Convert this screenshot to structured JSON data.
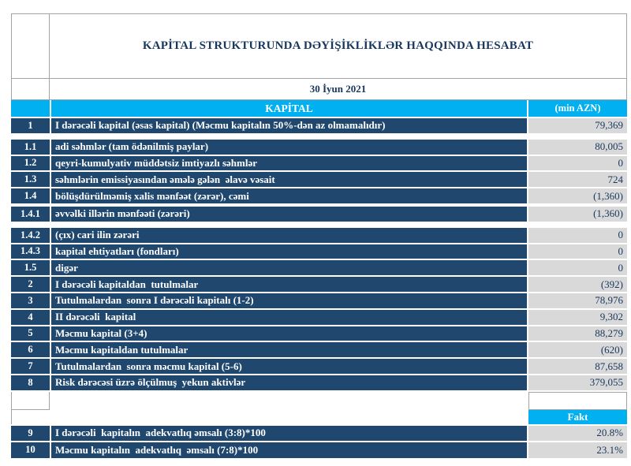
{
  "report": {
    "title": "KAPİTAL STRUKTURUNDA DƏYİŞİKLİKLƏR HAQQINDA HESABAT",
    "date": "30 İyun 2021"
  },
  "table": {
    "header": {
      "title": "KAPİTAL",
      "unit": "(min AZN)"
    },
    "rows": [
      {
        "no": "1",
        "label": "I dərəcəli kapital (əsas kapital) (Məcmu kapitalın 50%-dən az olmamalıdır)",
        "value": "79,369"
      },
      {
        "no": "1.1",
        "label": "adi səhmlər (tam ödənilmiş paylar)",
        "value": "80,005"
      },
      {
        "no": "1.2",
        "label": "qeyri-kumulyativ müddətsiz imtiyazlı səhmlər",
        "value": "0"
      },
      {
        "no": "1.3",
        "label": "səhmlərin emissiyasından əmələ gələn  əlavə vəsait",
        "value": "724"
      },
      {
        "no": "1.4",
        "label": "bölüşdürülməmiş xalis mənfəət (zərər), cəmi",
        "value": "(1,360)"
      },
      {
        "no": "1.4.1",
        "label": "əvvəlki illərin mənfəəti (zərəri)",
        "value": "(1,360)"
      },
      {
        "no": "1.4.2",
        "label": "(çıx) cari ilin zərəri",
        "value": "0"
      },
      {
        "no": "1.4.3",
        "label": "kapital ehtiyatları (fondları)",
        "value": "0"
      },
      {
        "no": "1.5",
        "label": "digər",
        "value": "0"
      },
      {
        "no": "2",
        "label": "I dərəcəli kapitaldan  tutulmalar",
        "value": "(392)"
      },
      {
        "no": "3",
        "label": "Tutulmalardan  sonra I dərəcəli kapitalı (1-2)",
        "value": "78,976"
      },
      {
        "no": "4",
        "label": "II dərəcəli  kapital",
        "value": "9,302"
      },
      {
        "no": "5",
        "label": "Məcmu kapital (3+4)",
        "value": "88,279"
      },
      {
        "no": "6",
        "label": "Məcmu kapitaldan tutulmalar",
        "value": "(620)"
      },
      {
        "no": "7",
        "label": "Tutulmalardan  sonra məcmu kapital (5-6)",
        "value": "87,658"
      },
      {
        "no": "8",
        "label": "Risk dərəcəsi üzrə ölçülmuş  yekun aktivlər",
        "value": "379,055"
      }
    ],
    "fakt_label": "Fakt",
    "ratio_rows": [
      {
        "no": "9",
        "label": "I dərəcəli  kapitalın  adekvatlıq əmsalı (3:8)*100",
        "value": "20.8%"
      },
      {
        "no": "10",
        "label": "Məcmu kapitalın  adekvatlıq  əmsalı (7:8)*100",
        "value": "23.1%"
      }
    ]
  },
  "colors": {
    "accent_cyan": "#00B0F0",
    "row_navy": "#20486F",
    "value_cell_gray": "#D9D9D9",
    "ink_blue": "#17375D"
  }
}
